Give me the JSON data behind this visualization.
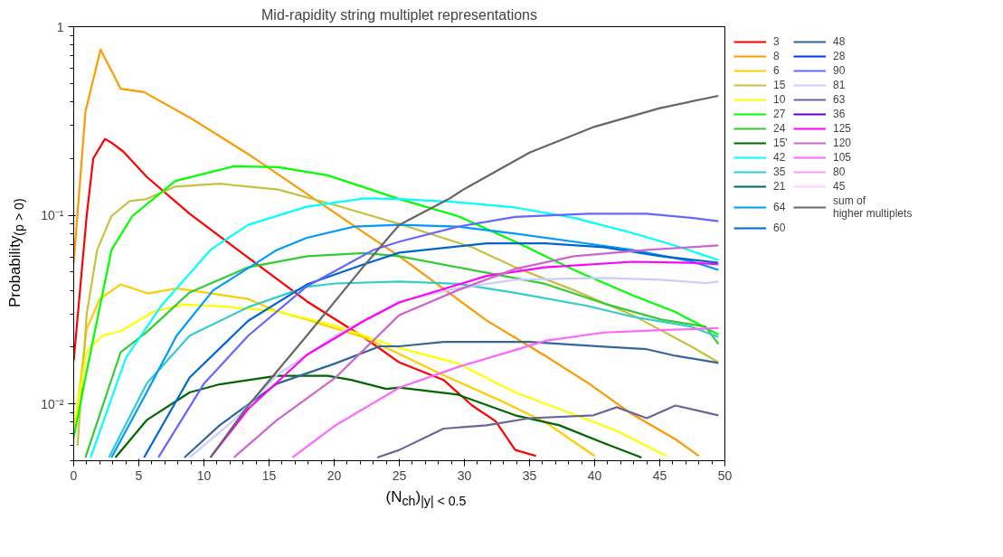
{
  "chart_data": {
    "type": "line",
    "title": "Mid-rapidity string multiplet representations",
    "xlabel": "(N$_{ch}$)$_{|y| < 0.5}$",
    "ylabel": "Probability$_{(p > 0)}$",
    "log": "y",
    "grid": false,
    "legend": "right",
    "line_style": "solid",
    "marker": "none",
    "xlim": [
      0,
      50
    ],
    "xticks": [
      0,
      5,
      10,
      15,
      20,
      25,
      30,
      35,
      40,
      45,
      50
    ],
    "ylim": [
      0.005,
      1
    ],
    "yticks": [
      {
        "value": 0.01,
        "label": "10⁻²"
      },
      {
        "value": 0.1,
        "label": "10⁻¹"
      },
      1
    ],
    "series": [
      {
        "name": "3",
        "color": "#ff0000",
        "x": [
          0,
          1,
          1.5,
          2.4,
          3,
          3.8,
          5.6,
          8.9,
          12.6,
          17.9,
          22.3,
          25,
          28.4,
          30.6,
          32.4,
          33.9,
          35.5
        ],
        "values": [
          0.017,
          0.1,
          0.2,
          0.254,
          0.24,
          0.218,
          0.16,
          0.102,
          0.0655,
          0.035,
          0.0225,
          0.0166,
          0.0134,
          0.0098,
          0.0081,
          0.0057,
          0.0053
        ]
      },
      {
        "name": "8",
        "color": "#ff9900",
        "x": [
          0,
          0.9,
          2.06,
          3.6,
          5.4,
          8.9,
          13.4,
          17.9,
          22.4,
          25,
          31.7,
          36.2,
          39.5,
          42.9,
          46.2,
          48
        ],
        "values": [
          0.056,
          0.354,
          0.757,
          0.469,
          0.45,
          0.33,
          0.211,
          0.13,
          0.08,
          0.0607,
          0.0277,
          0.018,
          0.0129,
          0.0088,
          0.0065,
          0.0053
        ]
      },
      {
        "name": "6",
        "color": "#ffcc00",
        "x": [
          0,
          1,
          2,
          3.6,
          5.7,
          7.9,
          13.4,
          15.6,
          17.9,
          22.3,
          25,
          28.4,
          32.8,
          36.2,
          40
        ],
        "values": [
          0.0066,
          0.025,
          0.036,
          0.043,
          0.0385,
          0.041,
          0.036,
          0.031,
          0.028,
          0.0225,
          0.0184,
          0.0142,
          0.0104,
          0.008,
          0.0053
        ]
      },
      {
        "name": "15",
        "color": "#c8c040",
        "x": [
          0.3,
          1,
          1.8,
          2.9,
          4.3,
          5.6,
          7.8,
          11.2,
          15.7,
          20.1,
          25,
          30.6,
          33.9,
          38.4,
          42.9,
          47.4,
          49.5
        ],
        "values": [
          0.006,
          0.03,
          0.0655,
          0.099,
          0.119,
          0.122,
          0.142,
          0.147,
          0.137,
          0.113,
          0.09,
          0.0677,
          0.053,
          0.0401,
          0.0296,
          0.0202,
          0.0166
        ]
      },
      {
        "name": "10",
        "color": "#ffff00",
        "x": [
          0,
          1,
          2.2,
          3.6,
          6.2,
          8.5,
          11.2,
          15.6,
          20.1,
          25,
          29.5,
          33.9,
          38.4,
          41.7,
          45.5
        ],
        "values": [
          0.0074,
          0.019,
          0.023,
          0.0243,
          0.031,
          0.0336,
          0.033,
          0.031,
          0.026,
          0.0198,
          0.0164,
          0.0115,
          0.0088,
          0.0072,
          0.0053
        ]
      },
      {
        "name": "27",
        "color": "#00ff00",
        "x": [
          0,
          0.9,
          2.9,
          4.5,
          7.8,
          12.3,
          15.7,
          19.5,
          22.4,
          25,
          29.5,
          33.9,
          38.4,
          42.9,
          46.2,
          49.5
        ],
        "values": [
          0.0066,
          0.0138,
          0.0655,
          0.099,
          0.152,
          0.182,
          0.18,
          0.163,
          0.14,
          0.122,
          0.099,
          0.0725,
          0.0513,
          0.0377,
          0.0307,
          0.0233
        ]
      },
      {
        "name": "24",
        "color": "#33cc33",
        "x": [
          0.9,
          3.6,
          5.6,
          8.9,
          13.4,
          17.9,
          22.3,
          25,
          30.6,
          36.2,
          40.7,
          45.1,
          48.5,
          49.5
        ],
        "values": [
          0.0052,
          0.0188,
          0.024,
          0.039,
          0.053,
          0.0607,
          0.063,
          0.0607,
          0.0513,
          0.0433,
          0.0341,
          0.028,
          0.0257,
          0.0208
        ]
      },
      {
        "name": "15'",
        "color": "#006600",
        "x": [
          3.2,
          5.6,
          8.9,
          11.2,
          15.6,
          19.5,
          21.3,
          24,
          25,
          29.5,
          33.9,
          37.3,
          40.7,
          43.6
        ],
        "values": [
          0.0052,
          0.0082,
          0.0115,
          0.0127,
          0.0141,
          0.0141,
          0.0134,
          0.012,
          0.0122,
          0.0112,
          0.0087,
          0.0077,
          0.0062,
          0.0052
        ]
      },
      {
        "name": "42",
        "color": "#00ffff",
        "x": [
          1.3,
          4,
          6.7,
          10.5,
          13.4,
          17.9,
          22.3,
          25,
          29,
          33.9,
          38.4,
          42.9,
          46.2,
          49.5
        ],
        "values": [
          0.0052,
          0.0175,
          0.033,
          0.0655,
          0.089,
          0.111,
          0.123,
          0.122,
          0.118,
          0.11,
          0.097,
          0.0805,
          0.069,
          0.058
        ]
      },
      {
        "name": "35",
        "color": "#33cccc",
        "x": [
          2.7,
          5.6,
          8.9,
          13.4,
          17.9,
          20.1,
          25,
          29.5,
          33.9,
          39.5,
          42.9,
          47.4,
          49.5
        ],
        "values": [
          0.0052,
          0.0128,
          0.023,
          0.0326,
          0.0418,
          0.0435,
          0.0445,
          0.0433,
          0.0388,
          0.033,
          0.029,
          0.0257,
          0.0226
        ]
      },
      {
        "name": "21",
        "color": "#006666"
      },
      {
        "name": "64",
        "color": "#0099ff",
        "x": [
          2.9,
          5.6,
          7.9,
          10.7,
          15.6,
          17.9,
          21.5,
          25,
          29.5,
          33.9,
          38.4,
          42.9,
          47.4,
          49.5
        ],
        "values": [
          0.0052,
          0.0115,
          0.023,
          0.04,
          0.0655,
          0.076,
          0.087,
          0.089,
          0.087,
          0.08,
          0.0725,
          0.0655,
          0.0571,
          0.0513
        ]
      },
      {
        "name": "60",
        "color": "#0066cc",
        "x": [
          5.4,
          8.9,
          13.4,
          17.9,
          22.3,
          25,
          31.7,
          36.2,
          40.7,
          45.1,
          49.5
        ],
        "values": [
          0.0052,
          0.0138,
          0.0276,
          0.043,
          0.055,
          0.0634,
          0.071,
          0.071,
          0.0677,
          0.0607,
          0.056
        ]
      },
      {
        "name": "48",
        "color": "#336699",
        "x": [
          8.5,
          11.2,
          15.6,
          20.1,
          23.5,
          25,
          28.4,
          35,
          40.7,
          44,
          46.2,
          49.5
        ],
        "values": [
          0.0052,
          0.0077,
          0.0128,
          0.0164,
          0.0202,
          0.0202,
          0.0213,
          0.0213,
          0.0201,
          0.0195,
          0.018,
          0.0165
        ]
      },
      {
        "name": "28",
        "color": "#0033ff"
      },
      {
        "name": "90",
        "color": "#6666ff",
        "x": [
          6.5,
          10,
          13.4,
          17.9,
          23,
          25,
          29.5,
          33.9,
          39.5,
          44,
          47.4,
          49.5
        ],
        "values": [
          0.0052,
          0.0128,
          0.023,
          0.042,
          0.0655,
          0.0725,
          0.087,
          0.098,
          0.102,
          0.102,
          0.097,
          0.093
        ]
      },
      {
        "name": "81",
        "color": "#ccccff",
        "x": [
          8.9,
          12.3,
          15.6,
          20.1,
          25,
          29.5,
          33.9,
          40.7,
          45.1,
          48.5,
          49.5
        ],
        "values": [
          0.0052,
          0.0082,
          0.0142,
          0.023,
          0.035,
          0.0411,
          0.0455,
          0.0465,
          0.0455,
          0.0437,
          0.0445
        ]
      },
      {
        "name": "63",
        "color": "#666699",
        "x": [
          23.3,
          25,
          28.4,
          31.7,
          35,
          39.9,
          41.7,
          44,
          46.2,
          49.5
        ],
        "values": [
          0.0052,
          0.0057,
          0.0074,
          0.0077,
          0.0084,
          0.0087,
          0.0096,
          0.0084,
          0.0098,
          0.0087
        ]
      },
      {
        "name": "36",
        "color": "#6600cc"
      },
      {
        "name": "125",
        "color": "#ff00ff",
        "x": [
          10.5,
          13.4,
          17.9,
          22.3,
          25,
          31.7,
          36.2,
          42.9,
          47.4,
          49.5
        ],
        "values": [
          0.0052,
          0.0094,
          0.0182,
          0.0276,
          0.0345,
          0.0477,
          0.053,
          0.0567,
          0.056,
          0.055
        ]
      },
      {
        "name": "120",
        "color": "#cc66cc",
        "x": [
          12.3,
          15.6,
          20.1,
          25,
          29.5,
          33.9,
          38.4,
          44,
          47.4,
          49.5
        ],
        "values": [
          0.0052,
          0.0082,
          0.0138,
          0.0296,
          0.0401,
          0.052,
          0.0607,
          0.0655,
          0.0677,
          0.0693
        ]
      },
      {
        "name": "105",
        "color": "#ff66ff",
        "x": [
          16.8,
          20.1,
          25,
          29.5,
          33.9,
          36.2,
          40.7,
          45.1,
          49.5
        ],
        "values": [
          0.0052,
          0.0077,
          0.0122,
          0.0157,
          0.0193,
          0.0216,
          0.0239,
          0.0246,
          0.0252
        ]
      },
      {
        "name": "80",
        "color": "#ff99ee"
      },
      {
        "name": "45",
        "color": "#ffccff"
      },
      {
        "name": "sum of\nhigher multiplets",
        "color": "#666666",
        "x": [
          10.5,
          13.4,
          17.9,
          22.3,
          25,
          28.8,
          30,
          35,
          40,
          45,
          49.5
        ],
        "values": [
          0.0052,
          0.0098,
          0.023,
          0.054,
          0.089,
          0.122,
          0.138,
          0.215,
          0.295,
          0.37,
          0.43
        ]
      }
    ]
  }
}
